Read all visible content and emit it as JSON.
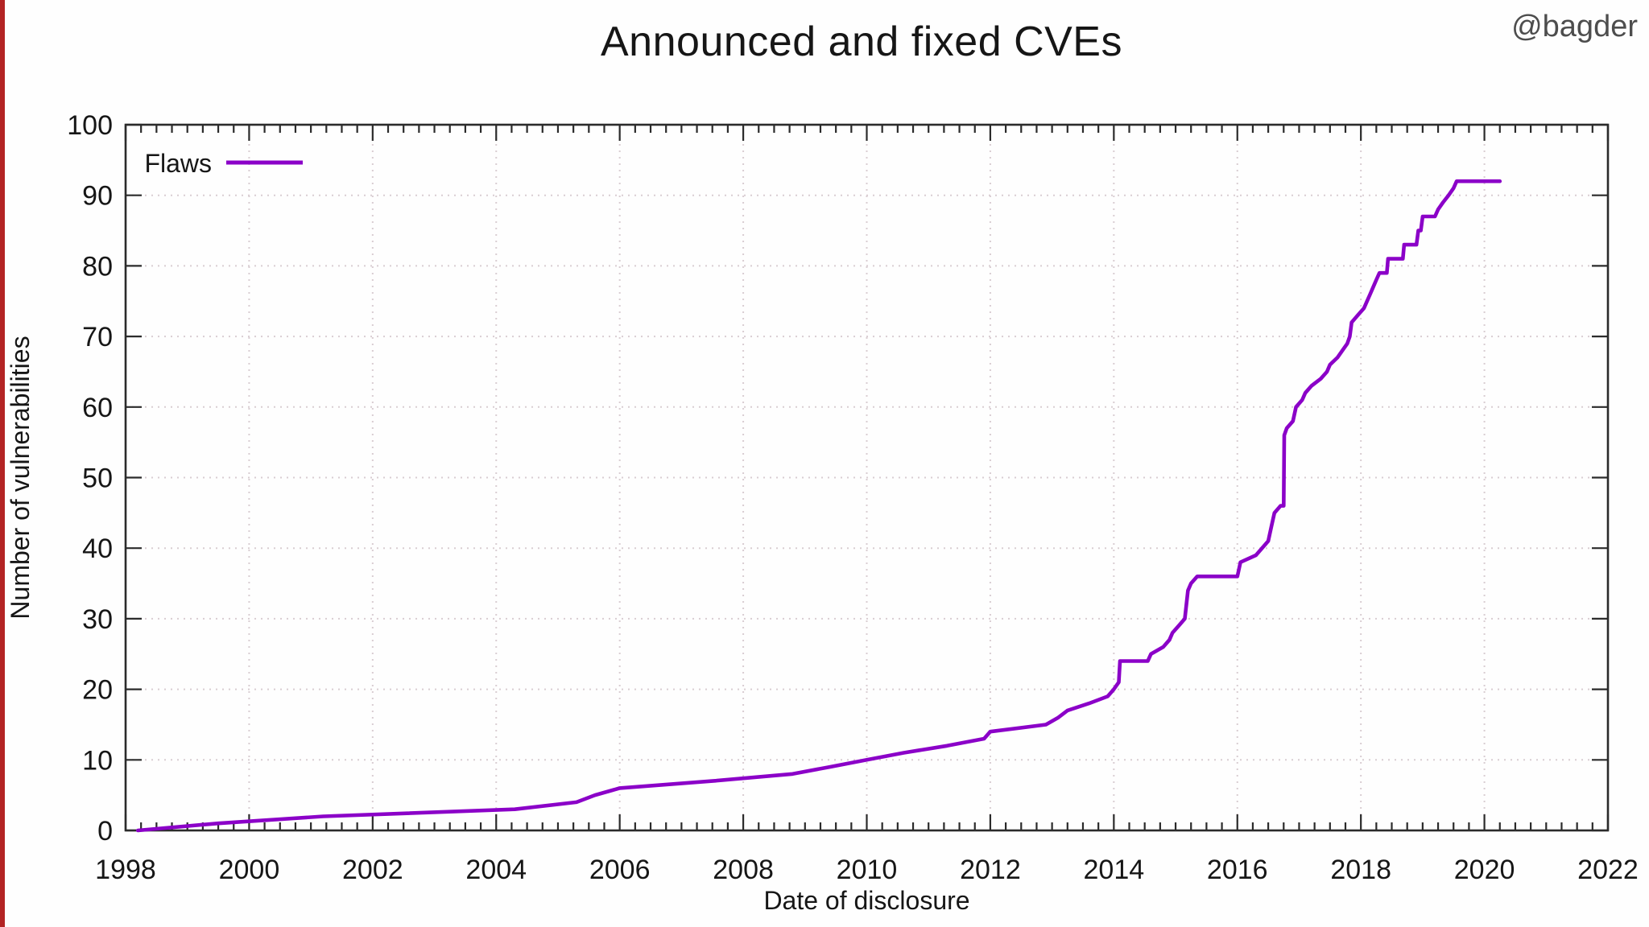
{
  "page": {
    "watermark": "@bagder"
  },
  "colors": {
    "series": "#8b00c8",
    "axis": "#2b2b2b",
    "grid": "#d9cdd2",
    "text": "#161616",
    "accent_bar": "#b32424"
  },
  "chart_data": {
    "type": "line",
    "title": "Announced and fixed CVEs",
    "xlabel": "Date of disclosure",
    "ylabel": "Number of vulnerabilities",
    "xlim": [
      1998,
      2022
    ],
    "ylim": [
      0,
      100
    ],
    "x_ticks": [
      1998,
      2000,
      2002,
      2004,
      2006,
      2008,
      2010,
      2012,
      2014,
      2016,
      2018,
      2020,
      2022
    ],
    "y_ticks": [
      0,
      10,
      20,
      30,
      40,
      50,
      60,
      70,
      80,
      90,
      100
    ],
    "x_minor_tick_step": 0.25,
    "grid": true,
    "legend_position": "top-left-inside",
    "series": [
      {
        "name": "Flaws",
        "color": "#8b00c8",
        "points": [
          [
            1998.2,
            0
          ],
          [
            1999.5,
            1
          ],
          [
            2001.2,
            2
          ],
          [
            2004.3,
            3
          ],
          [
            2005.3,
            4
          ],
          [
            2005.6,
            5
          ],
          [
            2006.0,
            6
          ],
          [
            2007.5,
            7
          ],
          [
            2008.8,
            8
          ],
          [
            2009.4,
            9
          ],
          [
            2010.0,
            10
          ],
          [
            2010.6,
            11
          ],
          [
            2011.3,
            12
          ],
          [
            2011.9,
            13
          ],
          [
            2012.0,
            14
          ],
          [
            2012.9,
            15
          ],
          [
            2013.1,
            16
          ],
          [
            2013.25,
            17
          ],
          [
            2013.6,
            18
          ],
          [
            2013.9,
            19
          ],
          [
            2014.0,
            20
          ],
          [
            2014.08,
            21
          ],
          [
            2014.1,
            24
          ],
          [
            2014.55,
            24
          ],
          [
            2014.6,
            25
          ],
          [
            2014.8,
            26
          ],
          [
            2014.9,
            27
          ],
          [
            2014.95,
            28
          ],
          [
            2015.05,
            29
          ],
          [
            2015.15,
            30
          ],
          [
            2015.2,
            34
          ],
          [
            2015.25,
            35
          ],
          [
            2015.35,
            36
          ],
          [
            2016.0,
            36
          ],
          [
            2016.05,
            38
          ],
          [
            2016.3,
            39
          ],
          [
            2016.4,
            40
          ],
          [
            2016.5,
            41
          ],
          [
            2016.55,
            43
          ],
          [
            2016.6,
            45
          ],
          [
            2016.7,
            46
          ],
          [
            2016.75,
            46
          ],
          [
            2016.76,
            56
          ],
          [
            2016.8,
            57
          ],
          [
            2016.9,
            58
          ],
          [
            2016.95,
            60
          ],
          [
            2017.05,
            61
          ],
          [
            2017.1,
            62
          ],
          [
            2017.2,
            63
          ],
          [
            2017.35,
            64
          ],
          [
            2017.45,
            65
          ],
          [
            2017.5,
            66
          ],
          [
            2017.62,
            67
          ],
          [
            2017.7,
            68
          ],
          [
            2017.78,
            69
          ],
          [
            2017.82,
            70
          ],
          [
            2017.85,
            72
          ],
          [
            2017.95,
            73
          ],
          [
            2018.05,
            74
          ],
          [
            2018.1,
            75
          ],
          [
            2018.15,
            76
          ],
          [
            2018.2,
            77
          ],
          [
            2018.25,
            78
          ],
          [
            2018.3,
            79
          ],
          [
            2018.42,
            79
          ],
          [
            2018.44,
            81
          ],
          [
            2018.68,
            81
          ],
          [
            2018.7,
            83
          ],
          [
            2018.9,
            83
          ],
          [
            2018.93,
            85
          ],
          [
            2018.97,
            85
          ],
          [
            2019.0,
            87
          ],
          [
            2019.2,
            87
          ],
          [
            2019.25,
            88
          ],
          [
            2019.33,
            89
          ],
          [
            2019.42,
            90
          ],
          [
            2019.5,
            91
          ],
          [
            2019.55,
            92
          ],
          [
            2020.25,
            92
          ]
        ]
      }
    ]
  }
}
